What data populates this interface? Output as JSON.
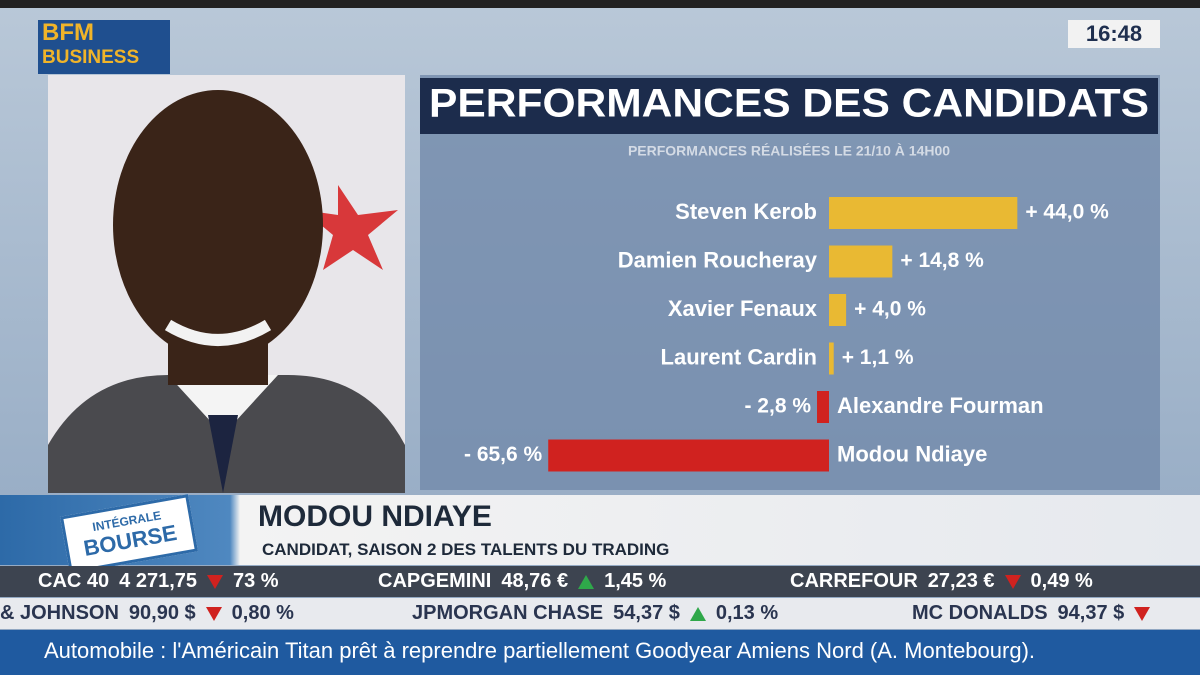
{
  "screen": {
    "logo": [
      "BFM",
      "BUSINESS"
    ],
    "clock": "16:48",
    "badge": [
      "INTÉGRALE",
      "BOURSE"
    ],
    "guest": {
      "name": "MODOU NDIAYE",
      "caption": "CANDIDAT, SAISON 2 DES TALENTS DU TRADING"
    },
    "ticker": [
      [
        {
          "name": "CAC 40",
          "price": "4 271,75",
          "trend": "down",
          "change": "73 %"
        },
        {
          "name": "CAPGEMINI",
          "price": "48,76 €",
          "trend": "up",
          "change": "1,45 %"
        },
        {
          "name": "CARREFOUR",
          "price": "27,23 €",
          "trend": "down",
          "change": "0,49 %"
        }
      ],
      [
        {
          "name": "& JOHNSON",
          "price": "90,90 $",
          "trend": "down",
          "change": "0,80 %"
        },
        {
          "name": "JPMORGAN CHASE",
          "price": "54,37 $",
          "trend": "up",
          "change": "0,13 %"
        },
        {
          "name": "MC DONALDS",
          "price": "94,37 $",
          "trend": "down"
        }
      ]
    ],
    "news": "Automobile : l'Américain Titan prêt à reprendre partiellement Goodyear Amiens Nord (A. Montebourg)."
  },
  "chart_data": {
    "type": "bar",
    "orientation": "horizontal",
    "title": "PERFORMANCES DES CANDIDATS",
    "subtitle": "PERFORMANCES RÉALISÉES LE 21/10 À 14H00",
    "categories": [
      "Steven Kerob",
      "Damien Roucheray",
      "Xavier Fenaux",
      "Laurent Cardin",
      "Alexandre Fourman",
      "Modou Ndiaye"
    ],
    "values": [
      44.0,
      14.8,
      4.0,
      1.1,
      -2.8,
      -65.6
    ],
    "value_labels": [
      "+ 44,0 %",
      "+ 14,8 %",
      "+ 4,0 %",
      "+ 1,1 %",
      "- 2,8 %",
      "- 65,6 %"
    ],
    "colors": {
      "positive": "#e9b933",
      "negative": "#d0221f"
    }
  }
}
